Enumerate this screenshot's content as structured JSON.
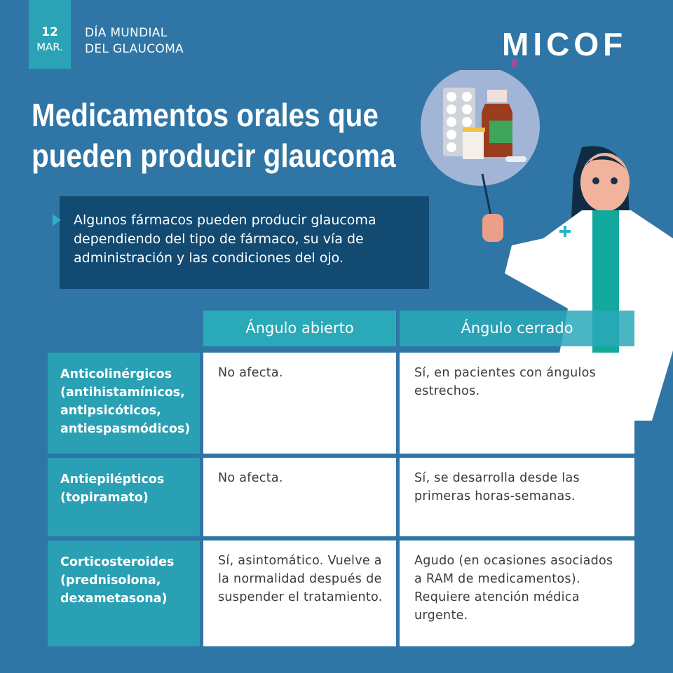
{
  "badge": {
    "day": "12",
    "month": "MAR."
  },
  "event": {
    "line1": "DÍA MUNDIAL",
    "line2": "DEL GLAUCOMA"
  },
  "logo": "MICOF",
  "title": {
    "line1": "Medicamentos orales que",
    "line2": "pueden producir glaucoma"
  },
  "info": "Algunos fármacos pueden producir glaucoma dependiendo del tipo de fármaco, su vía de administración y las condiciones del ojo.",
  "colors": {
    "background": "#2f76a6",
    "teal": "#2aa9b8",
    "dark": "#124a72"
  },
  "table": {
    "headers": [
      "Ángulo abierto",
      "Ángulo cerrado"
    ],
    "rows": [
      {
        "label": "Anticolinérgicos (antihistamínicos, antipsicóticos, antiespasmódicos)",
        "open": "No afecta.",
        "closed": "Sí, en pacientes con ángulos estrechos."
      },
      {
        "label": "Antiepilépticos (topiramato)",
        "open": "No afecta.",
        "closed": "Sí, se desarrolla desde las primeras horas-semanas."
      },
      {
        "label": "Corticosteroides (prednisolona, dexametasona)",
        "open": "Sí, asintomático. Vuelve a la normalidad después de suspender el tratamiento.",
        "closed": "Agudo (en ocasiones asociados a RAM de medicamentos). Requiere atención médica urgente."
      }
    ]
  }
}
